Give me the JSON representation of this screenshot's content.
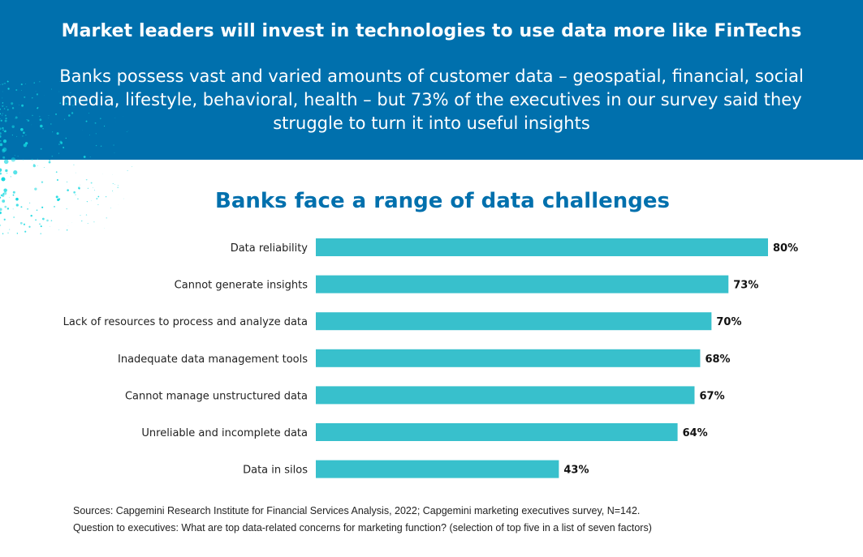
{
  "header": {
    "title": "Market leaders will invest in technologies to use data more like FinTechs",
    "subtitle": "Banks possess vast and varied amounts of customer data – geospatial, financial, social media, lifestyle, behavioral, health – but 73% of the executives in our survey said they struggle to turn it into useful insights"
  },
  "colors": {
    "banner": "#0070ad",
    "bar": "#38c0cc",
    "title": "#0070ad",
    "splash": "#12d8e0"
  },
  "chart_data": {
    "type": "bar",
    "orientation": "horizontal",
    "title": "Banks face a range of data challenges",
    "categories": [
      "Data reliability",
      "Cannot generate insights",
      "Lack of resources to process and analyze data",
      "Inadequate data management tools",
      "Cannot manage unstructured data",
      "Unreliable and incomplete data",
      "Data in silos"
    ],
    "values": [
      80,
      73,
      70,
      68,
      67,
      64,
      43
    ],
    "value_labels": [
      "80%",
      "73%",
      "70%",
      "68%",
      "67%",
      "64%",
      "43%"
    ],
    "xlabel": "",
    "ylabel": "",
    "xlim": [
      0,
      80
    ],
    "grid": false,
    "legend": "none"
  },
  "footer": {
    "sources": "Sources: Capgemini Research Institute for Financial Services Analysis, 2022; Capgemini marketing executives survey, N=142.",
    "question": "Question to executives: What are top data-related concerns for marketing function? (selection of top five in a list of seven factors)"
  }
}
